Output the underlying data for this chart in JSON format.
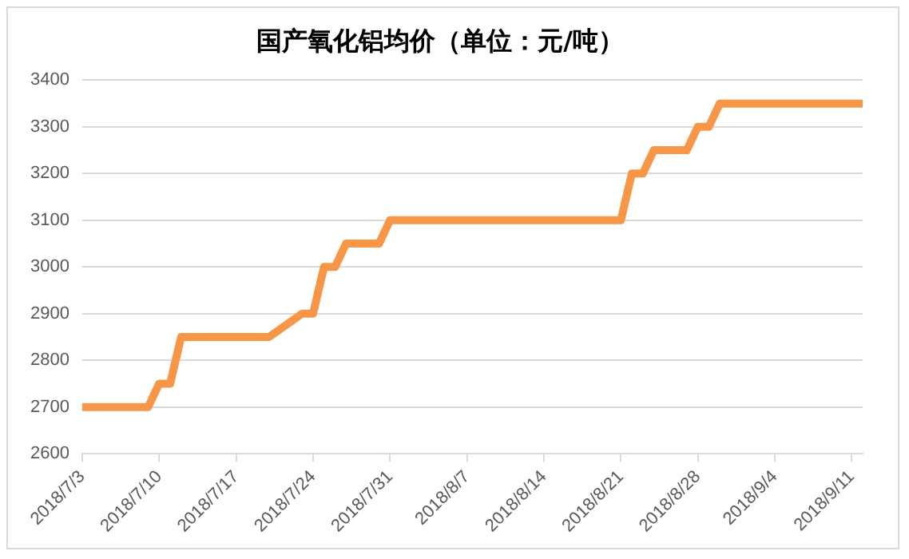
{
  "chart_data": {
    "type": "line",
    "title": "国产氧化铝均价（单位：元/吨）",
    "x": [
      "2018-07-03",
      "2018-07-09",
      "2018-07-10",
      "2018-07-11",
      "2018-07-12",
      "2018-07-20",
      "2018-07-23",
      "2018-07-24",
      "2018-07-25",
      "2018-07-26",
      "2018-07-27",
      "2018-07-30",
      "2018-07-31",
      "2018-08-21",
      "2018-08-22",
      "2018-08-23",
      "2018-08-24",
      "2018-08-27",
      "2018-08-28",
      "2018-08-29",
      "2018-08-30",
      "2018-09-12"
    ],
    "series": [
      {
        "color": "#f79646",
        "values": [
          2700,
          2700,
          2750,
          2750,
          2850,
          2850,
          2900,
          2900,
          3000,
          3000,
          3050,
          3050,
          3100,
          3100,
          3200,
          3200,
          3250,
          3250,
          3300,
          3300,
          3350,
          3350
        ]
      }
    ],
    "xlim": [
      "2018-07-03",
      "2018-09-12"
    ],
    "xticks": [
      {
        "value": "2018-07-03",
        "label": "2018/7/3"
      },
      {
        "value": "2018-07-10",
        "label": "2018/7/10"
      },
      {
        "value": "2018-07-17",
        "label": "2018/7/17"
      },
      {
        "value": "2018-07-24",
        "label": "2018/7/24"
      },
      {
        "value": "2018-07-31",
        "label": "2018/7/31"
      },
      {
        "value": "2018-08-07",
        "label": "2018/8/7"
      },
      {
        "value": "2018-08-14",
        "label": "2018/8/14"
      },
      {
        "value": "2018-08-21",
        "label": "2018/8/21"
      },
      {
        "value": "2018-08-28",
        "label": "2018/8/28"
      },
      {
        "value": "2018-09-04",
        "label": "2018/9/4"
      },
      {
        "value": "2018-09-11",
        "label": "2018/9/11"
      }
    ],
    "ylim": [
      2600,
      3400
    ],
    "yticks": [
      2600,
      2700,
      2800,
      2900,
      3000,
      3100,
      3200,
      3300,
      3400
    ],
    "grid": "y",
    "legend": false,
    "marker": "none",
    "line_style": "solid"
  }
}
